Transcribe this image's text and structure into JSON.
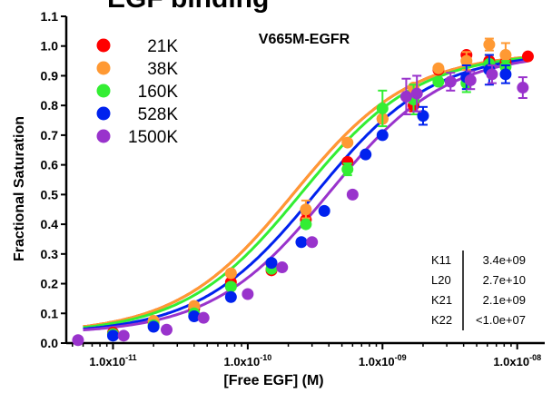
{
  "figure_title": "EGF binding",
  "chart_data": {
    "type": "scatter",
    "title": "V665M-EGFR",
    "xlabel": "[Free EGF] (M)",
    "ylabel": "Fractional Saturation",
    "x_scale": "log",
    "xlim": [
      4.5e-12,
      1.6e-08
    ],
    "ylim": [
      0,
      1.1
    ],
    "x_ticks": [
      1e-11,
      1e-10,
      1e-09,
      1e-08
    ],
    "x_tick_labels": [
      {
        "mant": "1.0x10",
        "exp": "-11"
      },
      {
        "mant": "1.0x10",
        "exp": "-10"
      },
      {
        "mant": "1.0x10",
        "exp": "-09"
      },
      {
        "mant": "1.0x10",
        "exp": "-08"
      }
    ],
    "y_ticks": [
      0.0,
      0.1,
      0.2,
      0.3,
      0.4,
      0.5,
      0.6,
      0.7,
      0.8,
      0.9,
      1.0,
      1.1
    ],
    "y_tick_labels": [
      "0.0",
      "0.1",
      "0.2",
      "0.3",
      "0.4",
      "0.5",
      "0.6",
      "0.7",
      "0.8",
      "0.9",
      "1.0",
      "1.1"
    ],
    "legend_position": "top-left",
    "series": [
      {
        "name": "21K",
        "color": "#ff0000",
        "kd": 2.2e-10,
        "points": [
          [
            1e-11,
            0.035
          ],
          [
            2e-11,
            0.07
          ],
          [
            4e-11,
            0.115
          ],
          [
            7.5e-11,
            0.205
          ],
          [
            1.5e-10,
            0.245
          ],
          [
            2.7e-10,
            0.415
          ],
          [
            5.5e-10,
            0.61
          ],
          [
            1e-09,
            0.755
          ],
          [
            1.7e-09,
            0.8
          ],
          [
            2.6e-09,
            0.92
          ],
          [
            4.2e-09,
            0.97
          ],
          [
            6.2e-09,
            0.95
          ],
          [
            8.2e-09,
            0.945
          ],
          [
            1.2e-08,
            0.965
          ]
        ],
        "errors": [
          0,
          0,
          0,
          0,
          0.01,
          0.02,
          0,
          0,
          0.02,
          0,
          0,
          0,
          0.03,
          0
        ]
      },
      {
        "name": "38K",
        "color": "#ff9933",
        "kd": 2.2e-10,
        "points": [
          [
            1e-11,
            0.03
          ],
          [
            2e-11,
            0.075
          ],
          [
            4e-11,
            0.125
          ],
          [
            7.5e-11,
            0.235
          ],
          [
            1.5e-10,
            0.265
          ],
          [
            2.7e-10,
            0.45
          ],
          [
            5.5e-10,
            0.675
          ],
          [
            1e-09,
            0.755
          ],
          [
            1.7e-09,
            0.86
          ],
          [
            2.6e-09,
            0.925
          ],
          [
            4.2e-09,
            0.95
          ],
          [
            6.2e-09,
            1.005
          ],
          [
            8.2e-09,
            0.97
          ]
        ],
        "errors": [
          0,
          0,
          0,
          0,
          0,
          0.03,
          0,
          0,
          0,
          0,
          0.03,
          0.02,
          0.04
        ]
      },
      {
        "name": "160K",
        "color": "#33ee33",
        "kd": 2.5e-10,
        "points": [
          [
            1e-11,
            0.03
          ],
          [
            2e-11,
            0.06
          ],
          [
            4e-11,
            0.1
          ],
          [
            7.5e-11,
            0.19
          ],
          [
            1.5e-10,
            0.25
          ],
          [
            2.7e-10,
            0.4
          ],
          [
            5.5e-10,
            0.585
          ],
          [
            1e-09,
            0.79
          ],
          [
            1.7e-09,
            0.82
          ],
          [
            2.6e-09,
            0.88
          ],
          [
            4.2e-09,
            0.875
          ],
          [
            6.2e-09,
            0.94
          ],
          [
            8.2e-09,
            0.93
          ]
        ],
        "errors": [
          0,
          0,
          0,
          0,
          0,
          0,
          0.02,
          0.06,
          0.05,
          0,
          0.03,
          0.03,
          0.02
        ]
      },
      {
        "name": "528K",
        "color": "#0022ee",
        "kd": 3.2e-10,
        "points": [
          [
            1e-11,
            0.025
          ],
          [
            2e-11,
            0.055
          ],
          [
            4e-11,
            0.09
          ],
          [
            7.5e-11,
            0.155
          ],
          [
            1.5e-10,
            0.27
          ],
          [
            2.5e-10,
            0.34
          ],
          [
            3.7e-10,
            0.445
          ],
          [
            7.5e-10,
            0.635
          ],
          [
            1e-09,
            0.7
          ],
          [
            2e-09,
            0.765
          ],
          [
            4.2e-09,
            0.895
          ],
          [
            6.2e-09,
            0.92
          ],
          [
            8.2e-09,
            0.905
          ]
        ],
        "errors": [
          0,
          0,
          0,
          0,
          0,
          0,
          0,
          0,
          0,
          0.03,
          0.04,
          0.05,
          0.03
        ]
      },
      {
        "name": "1500K",
        "color": "#9933cc",
        "kd": 4e-10,
        "points": [
          [
            5.5e-12,
            0.01
          ],
          [
            1.2e-11,
            0.025
          ],
          [
            2.5e-11,
            0.045
          ],
          [
            4.7e-11,
            0.085
          ],
          [
            1e-10,
            0.165
          ],
          [
            1.8e-10,
            0.255
          ],
          [
            3e-10,
            0.34
          ],
          [
            6e-10,
            0.5
          ],
          [
            1.5e-09,
            0.83
          ],
          [
            1.8e-09,
            0.84
          ],
          [
            3.2e-09,
            0.88
          ],
          [
            4.5e-09,
            0.885
          ],
          [
            6.5e-09,
            0.905
          ],
          [
            1.1e-08,
            0.86
          ]
        ],
        "errors": [
          0,
          0,
          0,
          0,
          0,
          0,
          0,
          0,
          0.06,
          0.06,
          0.03,
          0.03,
          0.03,
          0.035
        ]
      }
    ],
    "fit_params": [
      {
        "name": "K11",
        "value": "3.4e+09"
      },
      {
        "name": "L20",
        "value": "2.7e+10"
      },
      {
        "name": "K21",
        "value": "2.1e+09"
      },
      {
        "name": "K22",
        "value": "<1.0e+07"
      }
    ]
  }
}
